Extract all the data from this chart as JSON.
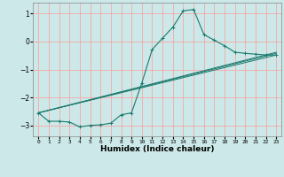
{
  "xlabel": "Humidex (Indice chaleur)",
  "bg_color": "#cce8e8",
  "grid_color": "#ff9999",
  "line_color": "#1a7a6e",
  "xlim": [
    -0.5,
    23.5
  ],
  "ylim": [
    -3.4,
    1.4
  ],
  "yticks": [
    -3,
    -2,
    -1,
    0,
    1
  ],
  "xticks": [
    0,
    1,
    2,
    3,
    4,
    5,
    6,
    7,
    8,
    9,
    10,
    11,
    12,
    13,
    14,
    15,
    16,
    17,
    18,
    19,
    20,
    21,
    22,
    23
  ],
  "series": [
    [
      0,
      -2.55
    ],
    [
      1,
      -2.85
    ],
    [
      2,
      -2.85
    ],
    [
      3,
      -2.88
    ],
    [
      4,
      -3.05
    ],
    [
      5,
      -3.0
    ],
    [
      6,
      -2.98
    ],
    [
      7,
      -2.92
    ],
    [
      8,
      -2.62
    ],
    [
      9,
      -2.55
    ],
    [
      10,
      -1.48
    ],
    [
      11,
      -0.28
    ],
    [
      12,
      0.12
    ],
    [
      13,
      0.52
    ],
    [
      14,
      1.1
    ],
    [
      15,
      1.15
    ],
    [
      16,
      0.25
    ],
    [
      17,
      0.05
    ],
    [
      18,
      -0.15
    ],
    [
      19,
      -0.38
    ],
    [
      20,
      -0.42
    ],
    [
      21,
      -0.45
    ],
    [
      22,
      -0.48
    ],
    [
      23,
      -0.48
    ]
  ],
  "line2": [
    [
      0,
      -2.55
    ],
    [
      23,
      -0.48
    ]
  ],
  "line3": [
    [
      0,
      -2.55
    ],
    [
      23,
      -0.42
    ]
  ],
  "line4": [
    [
      0,
      -2.55
    ],
    [
      23,
      -0.38
    ]
  ]
}
